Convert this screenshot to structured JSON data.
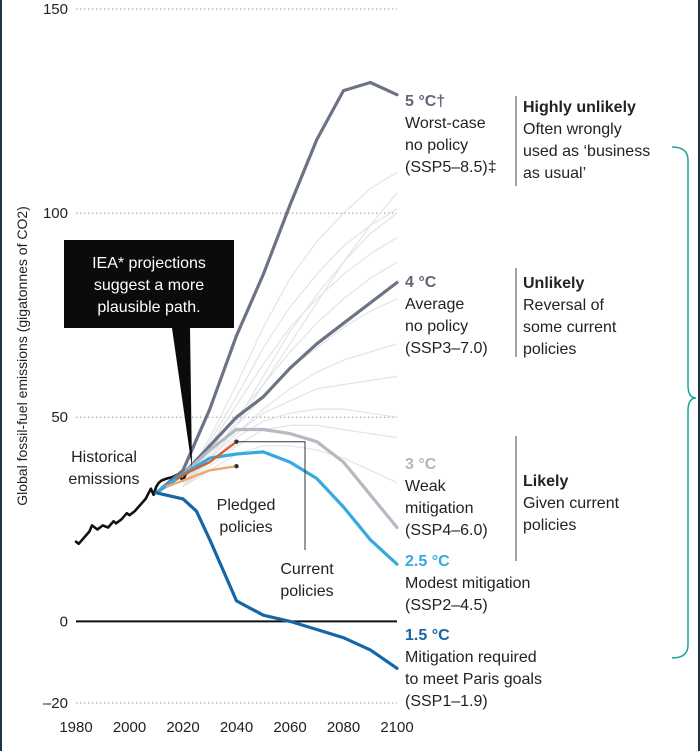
{
  "chart_data": {
    "type": "line",
    "ylabel": "Global fossil-fuel emissions (gigatonnes of CO2)",
    "xlim": [
      1980,
      2100
    ],
    "ylim": [
      -20,
      150
    ],
    "xticks": [
      "1980",
      "2000",
      "2020",
      "2040",
      "2060",
      "2080",
      "2100"
    ],
    "yticks": [
      "150",
      "100",
      "50",
      "0",
      "–20"
    ],
    "grid": "dotted horizontal",
    "series": [
      {
        "name": "Historical emissions",
        "color": "#111111",
        "x": [
          1980,
          1981,
          1983,
          1985,
          1986,
          1988,
          1990,
          1992,
          1994,
          1995,
          1997,
          1999,
          2000,
          2002,
          2004,
          2006,
          2008,
          2009,
          2010,
          2011,
          2012,
          2014,
          2016,
          2018,
          2020,
          2021,
          2022
        ],
        "y": [
          19.5,
          19,
          20.5,
          22,
          23.5,
          22.5,
          23.5,
          23,
          24.5,
          24,
          25,
          26.5,
          26,
          27,
          28.5,
          30,
          32.5,
          31,
          33,
          34,
          34.5,
          35,
          35.3,
          36,
          34.5,
          36,
          36.5
        ]
      },
      {
        "name": "5 °C",
        "color": "#6b7384",
        "x": [
          2010,
          2020,
          2030,
          2040,
          2050,
          2060,
          2070,
          2080,
          2090,
          2100
        ],
        "y": [
          31.5,
          37,
          52,
          70,
          85,
          102,
          118,
          130,
          132,
          129
        ]
      },
      {
        "name": "4 °C",
        "color": "#6b7384",
        "x": [
          2010,
          2020,
          2030,
          2040,
          2050,
          2060,
          2070,
          2080,
          2090,
          2100
        ],
        "y": [
          31.5,
          36,
          43,
          50,
          55,
          62,
          68,
          73,
          78,
          83
        ]
      },
      {
        "name": "3 °C",
        "color": "#b5b9c2",
        "x": [
          2010,
          2020,
          2030,
          2040,
          2050,
          2060,
          2070,
          2080,
          2090,
          2100
        ],
        "y": [
          31.5,
          36,
          42,
          47,
          47,
          46,
          44,
          39,
          31,
          23
        ]
      },
      {
        "name": "2.5 °C",
        "color": "#36a9e1",
        "x": [
          2010,
          2020,
          2030,
          2040,
          2050,
          2060,
          2070,
          2080,
          2090,
          2100
        ],
        "y": [
          31.5,
          36,
          40,
          41,
          41.5,
          39,
          35,
          28,
          20,
          14
        ]
      },
      {
        "name": "1.5 °C",
        "color": "#1565a7",
        "x": [
          2010,
          2020,
          2025,
          2030,
          2040,
          2050,
          2060,
          2070,
          2080,
          2090,
          2100
        ],
        "y": [
          31.5,
          30,
          27,
          20,
          5,
          1.5,
          0,
          -2,
          -4,
          -7,
          -11.5
        ]
      },
      {
        "name": "Pledged policies",
        "color": "#f0a868",
        "x": [
          2014,
          2022,
          2030,
          2040
        ],
        "y": [
          33,
          35,
          37,
          38
        ]
      },
      {
        "name": "Current policies",
        "color": "#d2622f",
        "x": [
          2018,
          2022,
          2030,
          2040
        ],
        "y": [
          35,
          36.5,
          39,
          44
        ]
      }
    ],
    "background_pathways": [
      [
        33,
        45,
        58,
        72,
        84,
        93,
        100,
        106,
        110
      ],
      [
        33,
        44,
        55,
        67,
        77,
        85,
        92,
        97,
        101
      ],
      [
        33,
        43,
        53,
        63,
        72,
        79,
        85,
        90,
        94
      ],
      [
        33,
        42,
        50,
        58,
        66,
        73,
        79,
        84,
        88
      ],
      [
        33,
        41,
        48,
        55,
        62,
        67,
        72,
        76,
        79
      ],
      [
        33,
        40,
        46,
        52,
        57,
        61,
        64,
        66,
        68
      ],
      [
        33,
        40,
        46,
        51,
        54,
        57,
        58,
        59,
        60
      ],
      [
        33,
        39,
        45,
        49,
        51,
        52,
        52,
        51,
        50
      ],
      [
        33,
        38,
        43,
        47,
        48,
        48,
        47,
        46,
        45
      ],
      [
        33,
        37,
        41,
        43,
        43,
        42,
        40,
        37,
        34
      ],
      [
        33,
        39,
        48,
        58,
        68,
        78,
        88,
        97,
        105
      ],
      [
        33,
        40,
        49,
        60,
        71,
        80,
        88,
        95,
        100
      ]
    ],
    "background_x": [
      2020,
      2030,
      2040,
      2050,
      2060,
      2070,
      2080,
      2090,
      2100
    ],
    "annotations": {
      "historical": [
        "Historical",
        "emissions"
      ],
      "pledged": [
        "Pledged",
        "policies"
      ],
      "current": [
        "Current",
        "policies"
      ],
      "iea": [
        "IEA* projections",
        "suggest a more",
        "plausible path."
      ],
      "s5": {
        "temp": "5 °C†",
        "lines": [
          "Worst-case",
          "no policy",
          "(SSP5–8.5)‡"
        ]
      },
      "s4": {
        "temp": "4 °C",
        "lines": [
          "Average",
          "no policy",
          "(SSP3–7.0)"
        ]
      },
      "s3": {
        "temp": "3 °C",
        "lines": [
          "Weak",
          "mitigation",
          "(SSP4–6.0)"
        ]
      },
      "s25": {
        "temp": "2.5 °C",
        "lines": [
          "Modest mitigation",
          "(SSP2–4.5)"
        ]
      },
      "s15": {
        "temp": "1.5 °C",
        "lines": [
          "Mitigation required",
          "to meet Paris goals",
          "(SSP1–1.9)"
        ]
      }
    },
    "likelihood": [
      {
        "head": "Highly unlikely",
        "lines": [
          "Often wrongly",
          "used as ‘business",
          "as usual’"
        ]
      },
      {
        "head": "Unlikely",
        "lines": [
          "Reversal of",
          "some current",
          "policies"
        ]
      },
      {
        "head": "Likely",
        "lines": [
          "Given current",
          "policies"
        ]
      }
    ]
  }
}
